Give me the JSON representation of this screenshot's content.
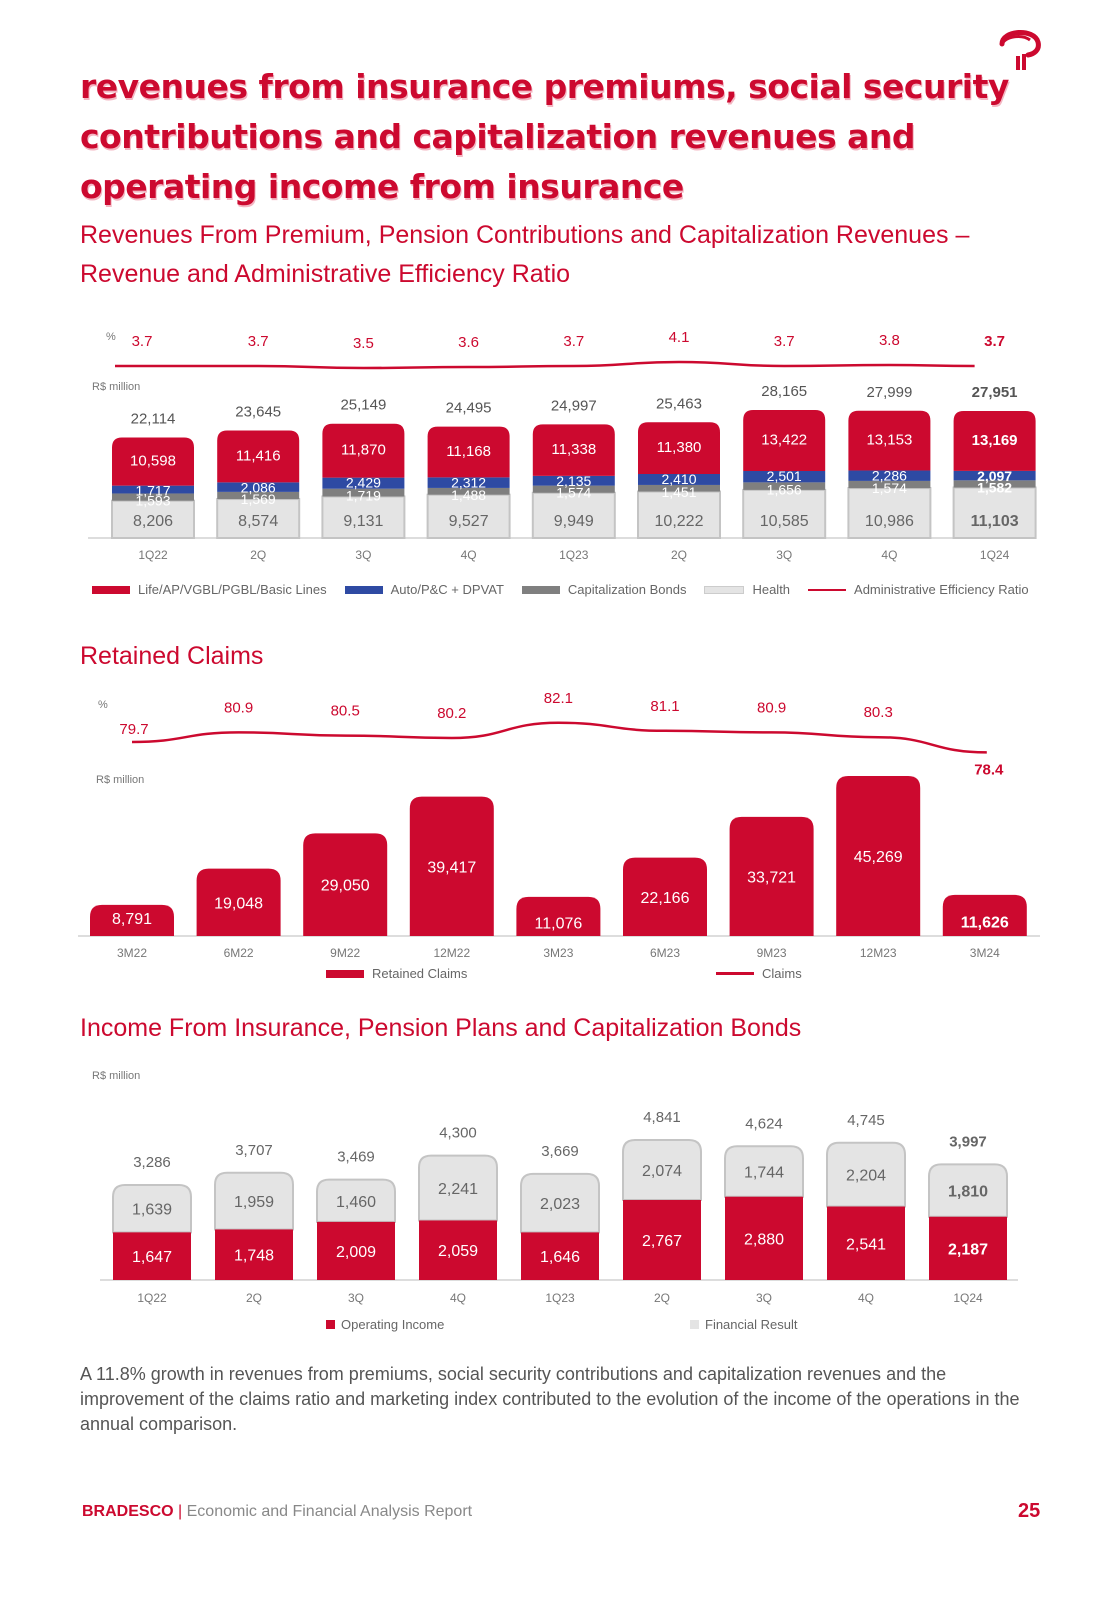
{
  "header": {
    "title": "revenues from insurance premiums, social security contributions and capitalization revenues and operating income from insurance",
    "logo_icon": "bradesco-logo-icon"
  },
  "section1": {
    "title_line1": "Revenues From Premium, Pension Contributions and Capitalization Revenues –",
    "title_line2": "Revenue and Administrative Efficiency Ratio"
  },
  "section2": {
    "title": "Retained Claims"
  },
  "section3": {
    "title": "Income From Insurance, Pension Plans and Capitalization Bonds"
  },
  "paragraph": "A 11.8% growth in revenues from premiums, social security contributions and capitalization revenues and the improvement of the claims ratio and marketing index contributed to the evolution of the income of the operations in the annual comparison.",
  "footer": {
    "brand": "BRADESCO",
    "separator": "|",
    "report": "Economic and Financial Analysis Report",
    "page": "25"
  },
  "colors": {
    "red": "#cc092f",
    "blue": "#2e4aa3",
    "dark_gray": "#7f7f7f",
    "light_gray": "#e4e4e4",
    "text_gray": "#666666"
  },
  "chart_data": [
    {
      "type": "bar",
      "stacked": true,
      "title": "Revenues From Premium, Pension Contributions and Capitalization Revenues – Revenue and Administrative Efficiency Ratio",
      "unit_left": "R$ million",
      "unit_line": "%",
      "categories": [
        "1Q22",
        "2Q",
        "3Q",
        "4Q",
        "1Q23",
        "2Q",
        "3Q",
        "4Q",
        "1Q24"
      ],
      "series": [
        {
          "name": "Health",
          "values": [
            8206,
            8574,
            9131,
            9527,
            9949,
            10222,
            10585,
            10986,
            11103
          ]
        },
        {
          "name": "Capitalization Bonds",
          "values": [
            1593,
            1569,
            1719,
            1488,
            1574,
            1451,
            1656,
            1574,
            1582
          ]
        },
        {
          "name": "Auto/P&C + DPVAT",
          "values": [
            1717,
            2086,
            2429,
            2312,
            2135,
            2410,
            2501,
            2286,
            2097
          ]
        },
        {
          "name": "Life/AP/VGBL/PGBL/Basic Lines",
          "values": [
            10598,
            11416,
            11870,
            11168,
            11338,
            11380,
            13422,
            13153,
            13169
          ]
        }
      ],
      "totals": [
        22114,
        23645,
        25149,
        24495,
        24997,
        25463,
        28165,
        27999,
        27951
      ],
      "line": {
        "name": "Administrative Efficiency Ratio",
        "values": [
          3.7,
          3.7,
          3.5,
          3.6,
          3.7,
          4.1,
          3.7,
          3.8,
          3.7
        ]
      },
      "legend": [
        "Life/AP/VGBL/PGBL/Basic Lines",
        "Auto/P&C + DPVAT",
        "Capitalization Bonds",
        "Health",
        "Administrative Efficiency Ratio"
      ],
      "legend_position": "bottom"
    },
    {
      "type": "bar",
      "title": "Retained Claims",
      "unit_left": "R$ million",
      "unit_line": "%",
      "categories": [
        "3M22",
        "6M22",
        "9M22",
        "12M22",
        "3M23",
        "6M23",
        "9M23",
        "12M23",
        "3M24"
      ],
      "series": [
        {
          "name": "Retained Claims",
          "values": [
            8791,
            19048,
            29050,
            39417,
            11076,
            22166,
            33721,
            45269,
            11626
          ]
        }
      ],
      "line": {
        "name": "Claims",
        "values": [
          79.7,
          80.9,
          80.5,
          80.2,
          82.1,
          81.1,
          80.9,
          80.3,
          78.4
        ]
      },
      "legend": [
        "Retained Claims",
        "Claims"
      ],
      "legend_position": "bottom"
    },
    {
      "type": "bar",
      "stacked": true,
      "title": "Income From Insurance, Pension Plans and Capitalization Bonds",
      "unit_left": "R$ million",
      "categories": [
        "1Q22",
        "2Q",
        "3Q",
        "4Q",
        "1Q23",
        "2Q",
        "3Q",
        "4Q",
        "1Q24"
      ],
      "series": [
        {
          "name": "Operating Income",
          "values": [
            1647,
            1748,
            2009,
            2059,
            1646,
            2767,
            2880,
            2541,
            2187
          ]
        },
        {
          "name": "Financial Result",
          "values": [
            1639,
            1959,
            1460,
            2241,
            2023,
            2074,
            1744,
            2204,
            1810
          ]
        }
      ],
      "totals": [
        3286,
        3707,
        3469,
        4300,
        3669,
        4841,
        4624,
        4745,
        3997
      ],
      "legend": [
        "Operating Income",
        "Financial Result"
      ],
      "legend_position": "bottom"
    }
  ]
}
